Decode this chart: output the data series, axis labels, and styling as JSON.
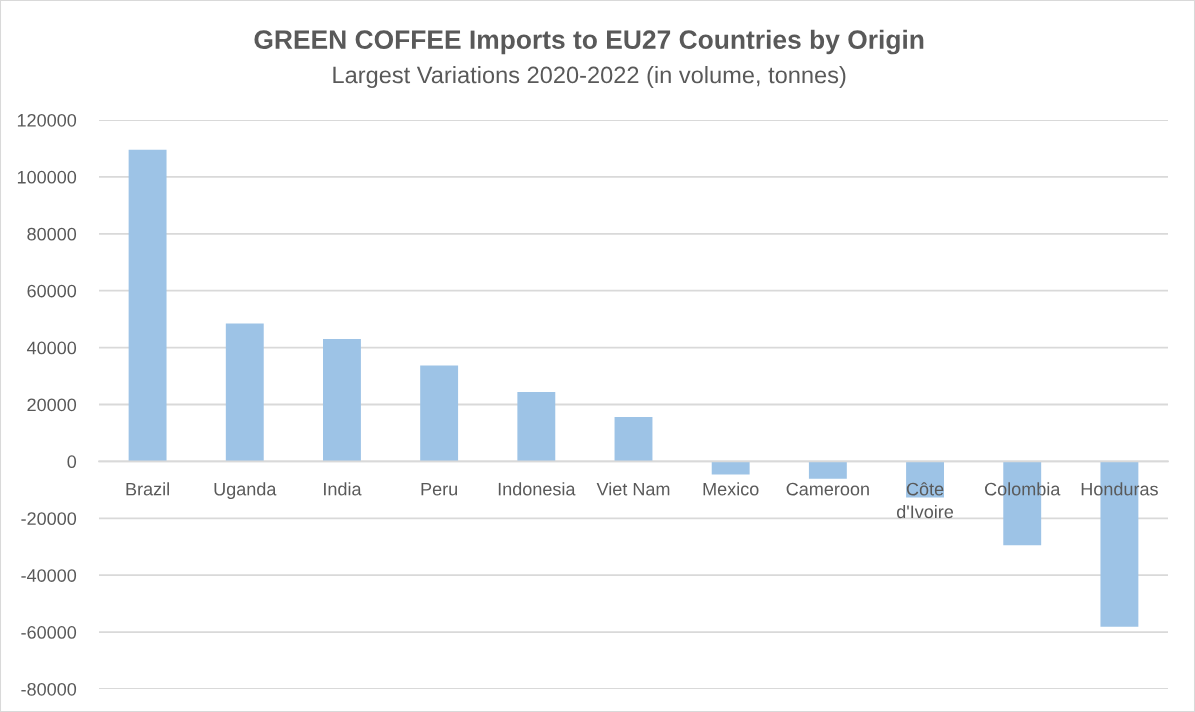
{
  "chart_data": {
    "type": "bar",
    "title": "GREEN COFFEE Imports to EU27 Countries by Origin",
    "subtitle": "Largest Variations 2020-2022 (in volume, tonnes)",
    "categories": [
      "Brazil",
      "Uganda",
      "India",
      "Peru",
      "Indonesia",
      "Viet Nam",
      "Mexico",
      "Cameroon",
      "Côte d'Ivoire",
      "Colombia",
      "Honduras"
    ],
    "values": [
      109500,
      48500,
      43000,
      33700,
      24400,
      15600,
      -4600,
      -6100,
      -12700,
      -29500,
      -58100
    ],
    "color": "#9dc3e6",
    "ylim": [
      -80000,
      120000
    ],
    "yticks": [
      -80000,
      -60000,
      -40000,
      -20000,
      0,
      20000,
      40000,
      60000,
      80000,
      100000,
      120000
    ],
    "grid": "y"
  }
}
